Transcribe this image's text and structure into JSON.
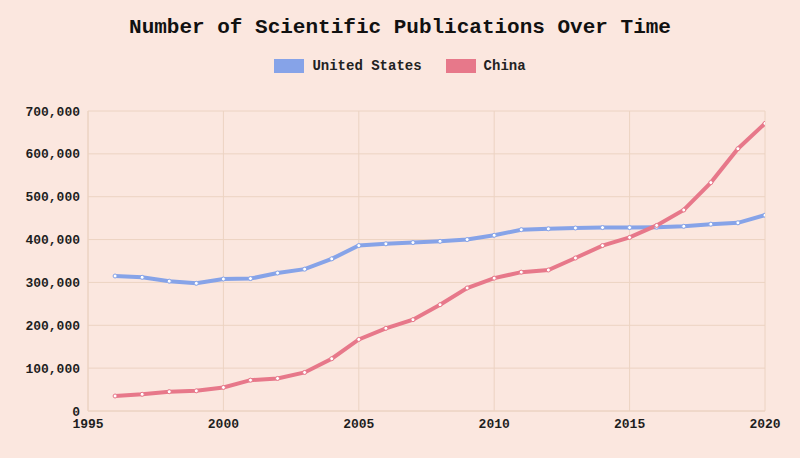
{
  "chart_data": {
    "type": "line",
    "title": "Number of Scientific Publications Over Time",
    "x": [
      1996,
      1997,
      1998,
      1999,
      2000,
      2001,
      2002,
      2003,
      2004,
      2005,
      2006,
      2007,
      2008,
      2009,
      2010,
      2011,
      2012,
      2013,
      2014,
      2015,
      2016,
      2017,
      2018,
      2019,
      2020
    ],
    "series": [
      {
        "name": "United States",
        "color": "#86a3e8",
        "marker": "circle",
        "values": [
          315000,
          312000,
          303000,
          298000,
          308000,
          309000,
          322000,
          331000,
          355000,
          386000,
          390000,
          393000,
          396000,
          400000,
          410000,
          423000,
          425000,
          427000,
          428000,
          428000,
          429000,
          431000,
          436000,
          439000,
          457000
        ]
      },
      {
        "name": "China",
        "color": "#e7788a",
        "marker": "circle",
        "values": [
          35000,
          39000,
          45000,
          47000,
          55000,
          72000,
          76000,
          90000,
          122000,
          167000,
          193000,
          213000,
          248000,
          287000,
          310000,
          324000,
          329000,
          357000,
          386000,
          405000,
          433000,
          469000,
          533000,
          612000,
          671000
        ]
      }
    ],
    "xlim": [
      1995,
      2020
    ],
    "xticks": [
      1995,
      2000,
      2005,
      2010,
      2015,
      2020
    ],
    "ylim": [
      0,
      700000
    ],
    "yticks": [
      0,
      {
        "value": 100000,
        "label": "100,000"
      },
      {
        "value": 200000,
        "label": "200,000"
      },
      {
        "value": 300000,
        "label": "300,000"
      },
      {
        "value": 400000,
        "label": "400,000"
      },
      {
        "value": 500000,
        "label": "500,000"
      },
      {
        "value": 600000,
        "label": "600,000"
      },
      {
        "value": 700000,
        "label": "700,000"
      }
    ],
    "grid": true,
    "legend": "top"
  }
}
